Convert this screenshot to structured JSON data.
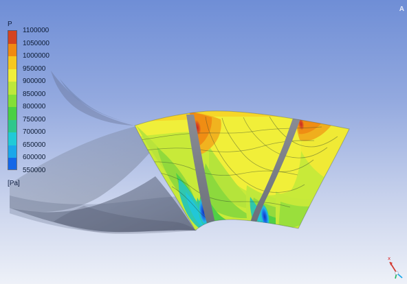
{
  "window": {
    "corner_label": "A"
  },
  "legend": {
    "title": "P",
    "units": "[Pa]",
    "labels": [
      "1100000",
      "1050000",
      "1000000",
      "950000",
      "900000",
      "850000",
      "800000",
      "750000",
      "700000",
      "650000",
      "600000",
      "550000"
    ],
    "colors": [
      "#d4441f",
      "#f08a12",
      "#f6c820",
      "#f0ef3a",
      "#bde83a",
      "#83df37",
      "#4ad044",
      "#2fc78c",
      "#20cad7",
      "#1aa7ea",
      "#1467e8",
      "#1431b8"
    ]
  },
  "triad": {
    "label": "x"
  }
}
